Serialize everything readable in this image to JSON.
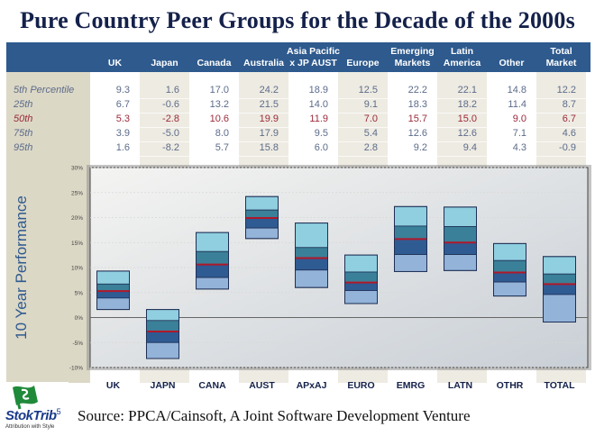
{
  "title": "Pure Country Peer Groups for the Decade of the 2000s",
  "table": {
    "columns": [
      {
        "top": "",
        "bottom": "UK"
      },
      {
        "top": "",
        "bottom": "Japan"
      },
      {
        "top": "",
        "bottom": "Canada"
      },
      {
        "top": "",
        "bottom": "Australia"
      },
      {
        "top": "Asia Pacific",
        "bottom": "x JP AUST"
      },
      {
        "top": "",
        "bottom": "Europe"
      },
      {
        "top": "Emerging",
        "bottom": "Markets"
      },
      {
        "top": "Latin",
        "bottom": "America"
      },
      {
        "top": "",
        "bottom": "Other"
      },
      {
        "top": "Total",
        "bottom": "Market"
      }
    ],
    "rows": [
      {
        "label": "5th Percentile",
        "values": [
          "9.3",
          "1.6",
          "17.0",
          "24.2",
          "18.9",
          "12.5",
          "22.2",
          "22.1",
          "14.8",
          "12.2"
        ]
      },
      {
        "label": "25th",
        "values": [
          "6.7",
          "-0.6",
          "13.2",
          "21.5",
          "14.0",
          "9.1",
          "18.3",
          "18.2",
          "11.4",
          "8.7"
        ]
      },
      {
        "label": "50th",
        "values": [
          "5.3",
          "-2.8",
          "10.6",
          "19.9",
          "11.9",
          "7.0",
          "15.7",
          "15.0",
          "9.0",
          "6.7"
        ]
      },
      {
        "label": "75th",
        "values": [
          "3.9",
          "-5.0",
          "8.0",
          "17.9",
          "9.5",
          "5.4",
          "12.6",
          "12.6",
          "7.1",
          "4.6"
        ]
      },
      {
        "label": "95th",
        "values": [
          "1.6",
          "-8.2",
          "5.7",
          "15.8",
          "6.0",
          "2.8",
          "9.2",
          "9.4",
          "4.3",
          "-0.9"
        ]
      }
    ]
  },
  "chart_data": {
    "type": "floating-box",
    "title": "Pure Country Peer Groups for the Decade of the 2000s",
    "ylabel": "10 Year Performance",
    "xlabel": "",
    "categories": [
      "UK",
      "JAPN",
      "CANA",
      "AUST",
      "APxAJ",
      "EURO",
      "EMRG",
      "LATN",
      "OTHR",
      "TOTAL"
    ],
    "yticks": [
      "30%",
      "25%",
      "20%",
      "15%",
      "10%",
      "5%",
      "0%",
      "-5%",
      "-10%"
    ],
    "ylim": [
      -10,
      30
    ],
    "grid": true,
    "series": [
      {
        "name": "5th Percentile",
        "values": [
          9.3,
          1.6,
          17.0,
          24.2,
          18.9,
          12.5,
          22.2,
          22.1,
          14.8,
          12.2
        ]
      },
      {
        "name": "25th",
        "values": [
          6.7,
          -0.6,
          13.2,
          21.5,
          14.0,
          9.1,
          18.3,
          18.2,
          11.4,
          8.7
        ]
      },
      {
        "name": "50th",
        "values": [
          5.3,
          -2.8,
          10.6,
          19.9,
          11.9,
          7.0,
          15.7,
          15.0,
          9.0,
          6.7
        ]
      },
      {
        "name": "75th",
        "values": [
          3.9,
          -5.0,
          8.0,
          17.9,
          9.5,
          5.4,
          12.6,
          12.6,
          7.1,
          4.6
        ]
      },
      {
        "name": "95th",
        "values": [
          1.6,
          -8.2,
          5.7,
          15.8,
          6.0,
          2.8,
          9.2,
          9.4,
          4.3,
          -0.9
        ]
      }
    ],
    "colors": {
      "top_band": "#8fcfe0",
      "upper_mid_band": "#3a8098",
      "lower_mid_band": "#2f5b93",
      "bottom_band": "#93b3d9",
      "median_line": "#b0182a",
      "box_border": "#1f2f55"
    }
  },
  "footer": {
    "logo_name": "StokTrib",
    "logo_superscript": "5",
    "logo_tagline": "Attribution with Style",
    "source": "Source: PPCA/Cainsoft, A Joint Software Development Venture"
  }
}
